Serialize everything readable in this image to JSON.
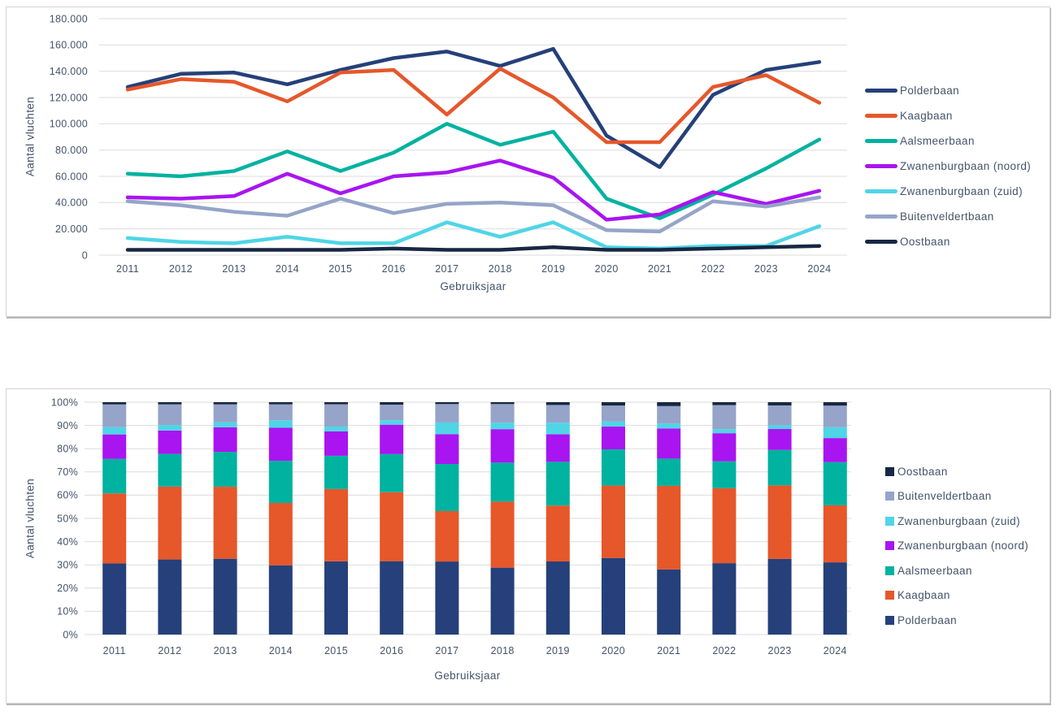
{
  "page": {
    "background": "#FFFFFF"
  },
  "style": {
    "text_color": "#44546A",
    "gridline_color": "#DBDBDB",
    "panel_border_color": "#D4D2D2"
  },
  "chart_data": [
    {
      "type": "line",
      "title": "",
      "xlabel": "Gebruiksjaar",
      "ylabel": "Aantal vluchten",
      "categories": [
        "2011",
        "2012",
        "2013",
        "2014",
        "2015",
        "2016",
        "2017",
        "2018",
        "2019",
        "2020",
        "2021",
        "2022",
        "2023",
        "2024"
      ],
      "ylim": [
        0,
        180000
      ],
      "ytick_step": 20000,
      "ytick_labels": [
        "0",
        "20.000",
        "40.000",
        "60.000",
        "80.000",
        "100.000",
        "120.000",
        "140.000",
        "160.000",
        "180.000"
      ],
      "grid": true,
      "legend_position": "right",
      "series": [
        {
          "name": "Polderbaan",
          "color": "#25407A",
          "values": [
            128000,
            138000,
            139000,
            130000,
            141000,
            150000,
            155000,
            144000,
            157000,
            91000,
            67000,
            122000,
            141000,
            147000
          ]
        },
        {
          "name": "Kaagbaan",
          "color": "#E6572A",
          "values": [
            126000,
            134000,
            132000,
            117000,
            139000,
            141000,
            107000,
            142000,
            120000,
            86000,
            86000,
            128000,
            137000,
            116000
          ]
        },
        {
          "name": "Aalsmeerbaan",
          "color": "#00B2A0",
          "values": [
            62000,
            60000,
            64000,
            79000,
            64000,
            78000,
            100000,
            84000,
            94000,
            43000,
            28000,
            46000,
            66000,
            88000
          ]
        },
        {
          "name": "Zwanenburgbaan (noord)",
          "color": "#A815F0",
          "values": [
            44000,
            43000,
            45000,
            62000,
            47000,
            60000,
            63000,
            72000,
            59000,
            27000,
            31000,
            48000,
            39000,
            49000
          ]
        },
        {
          "name": "Zwanenburgbaan (zuid)",
          "color": "#4FD5E6",
          "values": [
            13000,
            10000,
            9000,
            14000,
            9000,
            9000,
            25000,
            14000,
            25000,
            6000,
            5000,
            7000,
            7000,
            22000
          ]
        },
        {
          "name": "Buitenveldertbaan",
          "color": "#95A4C8",
          "values": [
            41000,
            38000,
            33000,
            30000,
            43000,
            32000,
            39000,
            40000,
            38000,
            19000,
            18000,
            41000,
            37000,
            44000
          ]
        },
        {
          "name": "Oostbaan",
          "color": "#182743",
          "values": [
            4000,
            4000,
            4000,
            4000,
            4000,
            5000,
            4000,
            4000,
            6000,
            4000,
            4000,
            5000,
            6000,
            7000
          ]
        }
      ]
    },
    {
      "type": "stacked-bar-100",
      "title": "",
      "xlabel": "Gebruiksjaar",
      "ylabel": "Aantal vluchten",
      "categories": [
        "2011",
        "2012",
        "2013",
        "2014",
        "2015",
        "2016",
        "2017",
        "2018",
        "2019",
        "2020",
        "2021",
        "2022",
        "2023",
        "2024"
      ],
      "ylim": [
        0,
        100
      ],
      "ytick_step": 10,
      "ytick_labels": [
        "0%",
        "10%",
        "20%",
        "30%",
        "40%",
        "50%",
        "60%",
        "70%",
        "80%",
        "90%",
        "100%"
      ],
      "grid": true,
      "legend_position": "right",
      "legend_order": "reversed",
      "stack_order": "bottom-to-top",
      "series": [
        {
          "name": "Polderbaan",
          "color": "#25407A",
          "values": [
            128000,
            138000,
            139000,
            130000,
            141000,
            150000,
            155000,
            144000,
            157000,
            91000,
            67000,
            122000,
            141000,
            147000
          ]
        },
        {
          "name": "Kaagbaan",
          "color": "#E6572A",
          "values": [
            126000,
            134000,
            132000,
            117000,
            139000,
            141000,
            107000,
            142000,
            120000,
            86000,
            86000,
            128000,
            137000,
            116000
          ]
        },
        {
          "name": "Aalsmeerbaan",
          "color": "#00B2A0",
          "values": [
            62000,
            60000,
            64000,
            79000,
            64000,
            78000,
            100000,
            84000,
            94000,
            43000,
            28000,
            46000,
            66000,
            88000
          ]
        },
        {
          "name": "Zwanenburgbaan (noord)",
          "color": "#A815F0",
          "values": [
            44000,
            43000,
            45000,
            62000,
            47000,
            60000,
            63000,
            72000,
            59000,
            27000,
            31000,
            48000,
            39000,
            49000
          ]
        },
        {
          "name": "Zwanenburgbaan (zuid)",
          "color": "#4FD5E6",
          "values": [
            13000,
            10000,
            9000,
            14000,
            9000,
            9000,
            25000,
            14000,
            25000,
            6000,
            5000,
            7000,
            7000,
            22000
          ]
        },
        {
          "name": "Buitenveldertbaan",
          "color": "#95A4C8",
          "values": [
            41000,
            38000,
            33000,
            30000,
            43000,
            32000,
            39000,
            40000,
            38000,
            19000,
            18000,
            41000,
            37000,
            44000
          ]
        },
        {
          "name": "Oostbaan",
          "color": "#182743",
          "values": [
            4000,
            4000,
            4000,
            4000,
            4000,
            5000,
            4000,
            4000,
            6000,
            4000,
            4000,
            5000,
            6000,
            7000
          ]
        }
      ]
    }
  ]
}
